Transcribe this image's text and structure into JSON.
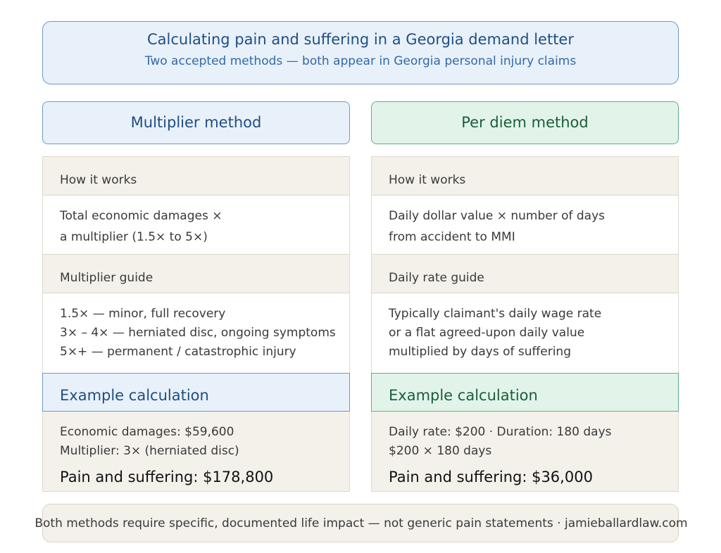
{
  "header": {
    "title": "Calculating pain and suffering in a Georgia demand letter",
    "subtitle": "Two accepted methods — both appear in Georgia personal injury claims"
  },
  "multiplier": {
    "heading": "Multiplier method",
    "how_label": "How it works",
    "how_lines": [
      "Total economic damages ×",
      "a multiplier (1.5× to 5×)"
    ],
    "guide_label": "Multiplier guide",
    "guide_lines": [
      "1.5× — minor, full recovery",
      "3× – 4× — herniated disc, ongoing symptoms",
      "5×+ — permanent / catastrophic injury"
    ],
    "example_label": "Example calculation",
    "example_lines": [
      "Economic damages: $59,600",
      "Multiplier: 3× (herniated disc)"
    ],
    "result": "Pain and suffering: $178,800"
  },
  "per_diem": {
    "heading": "Per diem method",
    "how_label": "How it works",
    "how_lines": [
      "Daily dollar value × number of days",
      "from accident to MMI"
    ],
    "guide_label": "Daily rate guide",
    "guide_lines": [
      "Typically claimant's daily wage rate",
      "or a flat agreed-upon daily value",
      "multiplied by days of suffering"
    ],
    "example_label": "Example calculation",
    "example_lines": [
      "Daily rate: $200 · Duration: 180 days",
      "$200 × 180 days"
    ],
    "result": "Pain and suffering: $36,000"
  },
  "footer": {
    "text": "Both methods require specific, documented life impact — not generic pain statements · jamieballardlaw.com"
  }
}
